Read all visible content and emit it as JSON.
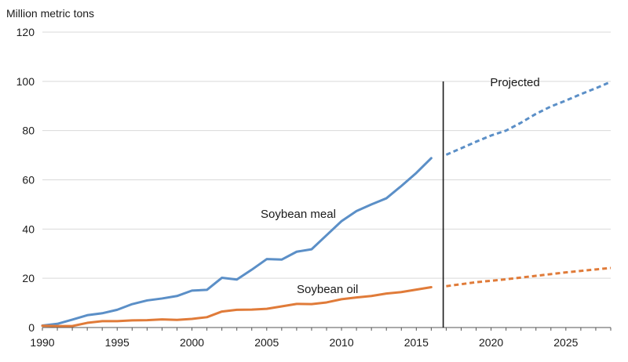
{
  "chart_data": {
    "type": "line",
    "ylabel": "Million metric tons",
    "ylim": [
      0,
      120
    ],
    "xlim": [
      1990,
      2028
    ],
    "y_ticks": [
      "0",
      "20",
      "40",
      "60",
      "80",
      "100",
      "120"
    ],
    "x_ticks": [
      "1990",
      "1995",
      "2000",
      "2005",
      "2010",
      "2015",
      "2020",
      "2025"
    ],
    "grid": true,
    "projection_start": 2016.8,
    "projection_label": "Projected",
    "series": [
      {
        "name": "Soybean meal",
        "color": "#5b8fc7",
        "x": [
          1990,
          1991,
          1992,
          1993,
          1994,
          1995,
          1996,
          1997,
          1998,
          1999,
          2000,
          2001,
          2002,
          2003,
          2004,
          2005,
          2006,
          2007,
          2008,
          2009,
          2010,
          2011,
          2012,
          2013,
          2014,
          2015,
          2016
        ],
        "values": [
          0.8,
          1.5,
          3.2,
          5.0,
          5.8,
          7.2,
          9.5,
          11.0,
          11.8,
          12.8,
          15.0,
          15.3,
          20.2,
          19.5,
          23.5,
          27.8,
          27.6,
          30.8,
          31.8,
          37.5,
          43.2,
          47.3,
          50.0,
          52.5,
          57.5,
          62.8,
          68.8
        ],
        "projected_x": [
          2017,
          2018,
          2019,
          2020,
          2021,
          2022,
          2023,
          2024,
          2025,
          2026,
          2027,
          2028
        ],
        "projected_values": [
          70.2,
          72.8,
          75.5,
          78.0,
          80.0,
          83.2,
          86.8,
          89.8,
          92.2,
          94.8,
          97.2,
          99.8
        ]
      },
      {
        "name": "Soybean oil",
        "color": "#e07b39",
        "x": [
          1990,
          1991,
          1992,
          1993,
          1994,
          1995,
          1996,
          1997,
          1998,
          1999,
          2000,
          2001,
          2002,
          2003,
          2004,
          2005,
          2006,
          2007,
          2008,
          2009,
          2010,
          2011,
          2012,
          2013,
          2014,
          2015,
          2016
        ],
        "values": [
          0.7,
          0.6,
          0.6,
          1.9,
          2.6,
          2.6,
          2.9,
          3.0,
          3.3,
          3.1,
          3.5,
          4.2,
          6.5,
          7.2,
          7.3,
          7.6,
          8.6,
          9.6,
          9.5,
          10.2,
          11.5,
          12.2,
          12.8,
          13.8,
          14.4,
          15.4,
          16.4
        ],
        "projected_x": [
          2017,
          2018,
          2019,
          2020,
          2021,
          2022,
          2023,
          2024,
          2025,
          2026,
          2027,
          2028
        ],
        "projected_values": [
          16.8,
          17.6,
          18.4,
          19.0,
          19.6,
          20.3,
          21.0,
          21.7,
          22.4,
          23.0,
          23.6,
          24.2
        ]
      }
    ]
  }
}
